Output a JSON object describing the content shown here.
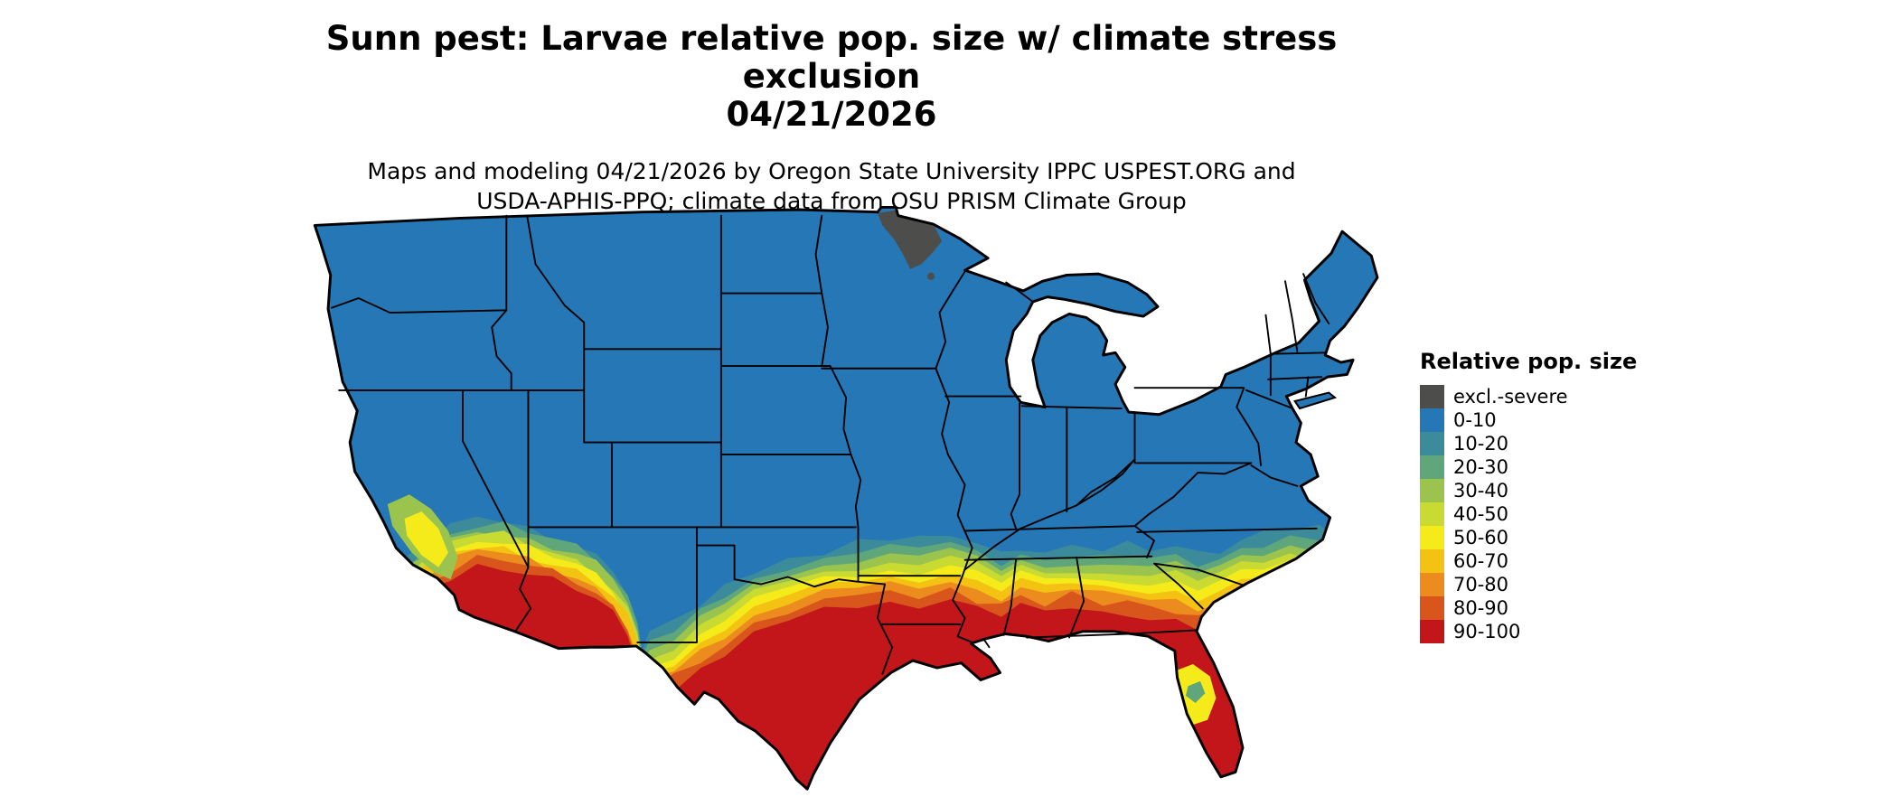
{
  "title": {
    "line1": "Sunn pest: Larvae relative pop. size w/ climate stress exclusion",
    "line2": "04/21/2026"
  },
  "subtitle": {
    "line1": "Maps and modeling 04/21/2026 by Oregon State University IPPC USPEST.ORG and",
    "line2": "USDA-APHIS-PPQ; climate data from OSU PRISM Climate Group"
  },
  "legend": {
    "title": "Relative pop. size",
    "items": [
      {
        "label": "excl.-severe",
        "color": "#4D4D4B"
      },
      {
        "label": "0-10",
        "color": "#2577B6"
      },
      {
        "label": "10-20",
        "color": "#3C8B9B"
      },
      {
        "label": "20-30",
        "color": "#5FA77A"
      },
      {
        "label": "30-40",
        "color": "#9BC44F"
      },
      {
        "label": "40-50",
        "color": "#C9DA32"
      },
      {
        "label": "50-60",
        "color": "#F5EB1A"
      },
      {
        "label": "60-70",
        "color": "#F3C212"
      },
      {
        "label": "70-80",
        "color": "#EC8C1E"
      },
      {
        "label": "80-90",
        "color": "#D8561C"
      },
      {
        "label": "90-100",
        "color": "#C3161B"
      }
    ]
  },
  "map": {
    "background": "#FFFFFF",
    "outline_color": "#000000",
    "base_category": "0-10",
    "excluded_region": "northern Minnesota (excl.-severe)",
    "high_population_regions": "southern Arizona/California deserts, central and eastern Texas, Gulf Coast, Louisiana, southern Mississippi-Alabama-Georgia, Florida, southern Atlantic coastal plain"
  }
}
